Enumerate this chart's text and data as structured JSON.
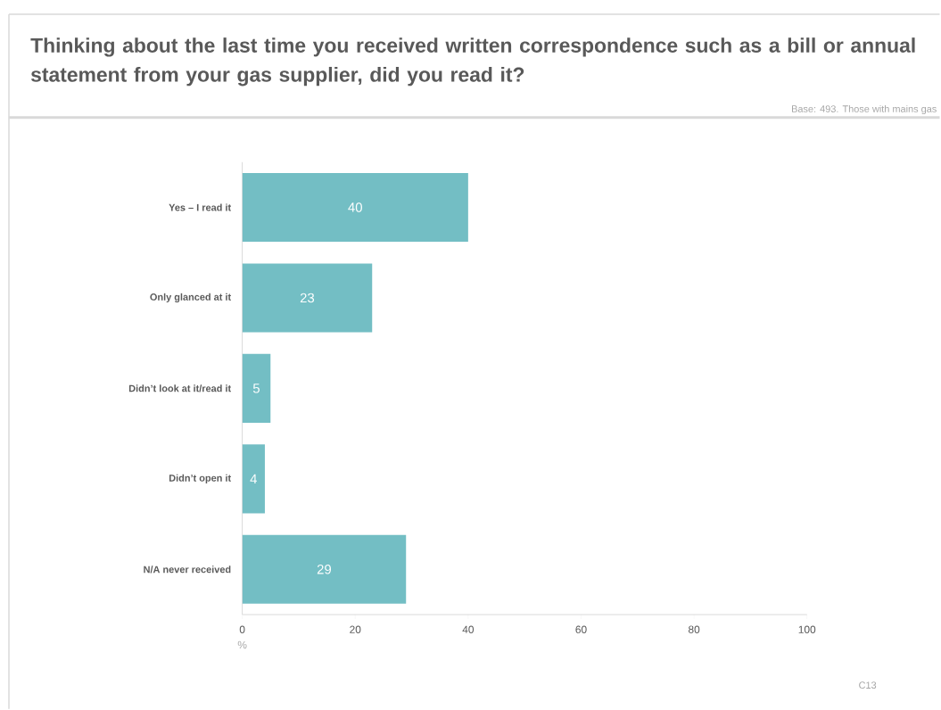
{
  "chart_data": {
    "type": "bar",
    "orientation": "horizontal",
    "title": "Thinking about the last time you received written correspondence such as a bill or annual statement from your gas supplier, did you read it?",
    "subtitle": "Base: 493. Those with mains gas",
    "categories": [
      "Yes – I read it",
      "Only glanced at it",
      "Didn’t look at it/read it",
      "Didn’t open it",
      "N/A never received"
    ],
    "values": [
      40,
      23,
      5,
      4,
      29
    ],
    "color": "#73bec4",
    "data_labels": true,
    "xlabel": "%",
    "xlim": [
      0,
      100
    ],
    "xticks": [
      0,
      20,
      40,
      60,
      80,
      100
    ],
    "annotations": [
      "C13"
    ]
  }
}
